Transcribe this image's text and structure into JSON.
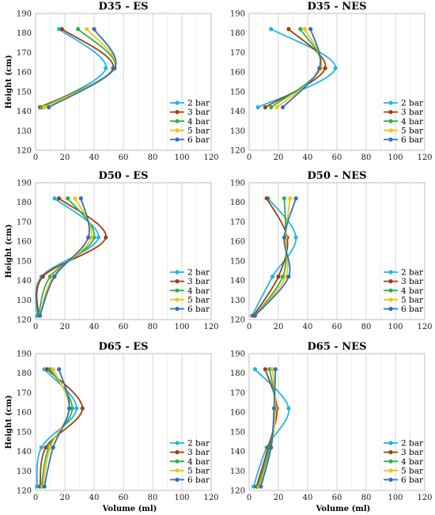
{
  "chart_data": [
    {
      "type": "line",
      "title": "D35 - ES",
      "xlabel": "",
      "ylabel": "Height (cm)",
      "xlim": [
        0,
        120
      ],
      "ylim": [
        120,
        190
      ],
      "xticks": [
        0,
        20,
        40,
        60,
        80,
        100,
        120
      ],
      "yticks": [
        120,
        130,
        140,
        150,
        160,
        170,
        180,
        190
      ],
      "legend": "bottom-right",
      "grid": "vertical",
      "series": [
        {
          "name": "2 bar",
          "color": "#1fb5e8",
          "points": [
            [
              16,
              182
            ],
            [
              48,
              162
            ],
            [
              5,
              142
            ]
          ]
        },
        {
          "name": "3 bar",
          "color": "#a23e0d",
          "points": [
            [
              18,
              182
            ],
            [
              53,
              162
            ],
            [
              3,
              142
            ]
          ]
        },
        {
          "name": "4 bar",
          "color": "#2bb24a",
          "points": [
            [
              29,
              182
            ],
            [
              54,
              162
            ],
            [
              4,
              142
            ]
          ]
        },
        {
          "name": "5 bar",
          "color": "#f4c316",
          "points": [
            [
              35,
              182
            ],
            [
              54,
              162
            ],
            [
              6,
              142
            ]
          ]
        },
        {
          "name": "6 bar",
          "color": "#2f6fc0",
          "points": [
            [
              40,
              182
            ],
            [
              54,
              162
            ],
            [
              9,
              142
            ]
          ]
        }
      ]
    },
    {
      "type": "line",
      "title": "D35 - NES",
      "xlabel": "",
      "ylabel": "",
      "xlim": [
        0,
        120
      ],
      "ylim": [
        120,
        190
      ],
      "xticks": [
        0,
        20,
        40,
        60,
        80,
        100,
        120
      ],
      "yticks": [
        120,
        130,
        140,
        150,
        160,
        170,
        180,
        190
      ],
      "legend": "bottom-right",
      "grid": "vertical",
      "series": [
        {
          "name": "2 bar",
          "color": "#1fb5e8",
          "points": [
            [
              15,
              182
            ],
            [
              59,
              162
            ],
            [
              6,
              142
            ]
          ]
        },
        {
          "name": "3 bar",
          "color": "#a23e0d",
          "points": [
            [
              27,
              182
            ],
            [
              52,
              162
            ],
            [
              11,
              142
            ]
          ]
        },
        {
          "name": "4 bar",
          "color": "#2bb24a",
          "points": [
            [
              35,
              182
            ],
            [
              49,
              162
            ],
            [
              15,
              142
            ]
          ]
        },
        {
          "name": "5 bar",
          "color": "#f4c316",
          "points": [
            [
              38,
              182
            ],
            [
              49,
              162
            ],
            [
              19,
              142
            ]
          ]
        },
        {
          "name": "6 bar",
          "color": "#2f6fc0",
          "points": [
            [
              42,
              182
            ],
            [
              48,
              162
            ],
            [
              23,
              142
            ]
          ]
        }
      ]
    },
    {
      "type": "line",
      "title": "D50 - ES",
      "xlabel": "",
      "ylabel": "Height (cm)",
      "xlim": [
        0,
        120
      ],
      "ylim": [
        120,
        190
      ],
      "xticks": [
        0,
        20,
        40,
        60,
        80,
        100,
        120
      ],
      "yticks": [
        120,
        130,
        140,
        150,
        160,
        170,
        180,
        190
      ],
      "legend": "bottom-right",
      "grid": "vertical",
      "series": [
        {
          "name": "2 bar",
          "color": "#1fb5e8",
          "points": [
            [
              13,
              182
            ],
            [
              43,
              162
            ],
            [
              4,
              142
            ],
            [
              1,
              122
            ]
          ]
        },
        {
          "name": "3 bar",
          "color": "#a23e0d",
          "points": [
            [
              16,
              182
            ],
            [
              48,
              162
            ],
            [
              5,
              142
            ],
            [
              2,
              122
            ]
          ]
        },
        {
          "name": "4 bar",
          "color": "#2bb24a",
          "points": [
            [
              22,
              182
            ],
            [
              40,
              162
            ],
            [
              10,
              142
            ],
            [
              2,
              122
            ]
          ]
        },
        {
          "name": "5 bar",
          "color": "#f4c316",
          "points": [
            [
              27,
              182
            ],
            [
              38,
              162
            ],
            [
              12,
              142
            ],
            [
              3,
              122
            ]
          ]
        },
        {
          "name": "6 bar",
          "color": "#2f6fc0",
          "points": [
            [
              31,
              182
            ],
            [
              36,
              162
            ],
            [
              13,
              142
            ],
            [
              3,
              122
            ]
          ]
        }
      ]
    },
    {
      "type": "line",
      "title": "D50 - NES",
      "xlabel": "",
      "ylabel": "",
      "xlim": [
        0,
        120
      ],
      "ylim": [
        120,
        190
      ],
      "xticks": [
        0,
        20,
        40,
        60,
        80,
        100,
        120
      ],
      "yticks": [
        120,
        130,
        140,
        150,
        160,
        170,
        180,
        190
      ],
      "legend": "bottom-right",
      "grid": "vertical",
      "series": [
        {
          "name": "2 bar",
          "color": "#1fb5e8",
          "points": [
            [
              13,
              182
            ],
            [
              32,
              162
            ],
            [
              16,
              142
            ],
            [
              2,
              122
            ]
          ]
        },
        {
          "name": "3 bar",
          "color": "#a23e0d",
          "points": [
            [
              12,
              182
            ],
            [
              26,
              162
            ],
            [
              20,
              142
            ],
            [
              3,
              122
            ]
          ]
        },
        {
          "name": "4 bar",
          "color": "#2bb24a",
          "points": [
            [
              24,
              182
            ],
            [
              25,
              162
            ],
            [
              23,
              142
            ],
            [
              4,
              122
            ]
          ]
        },
        {
          "name": "5 bar",
          "color": "#f4c316",
          "points": [
            [
              28,
              182
            ],
            [
              25,
              162
            ],
            [
              25,
              142
            ],
            [
              4,
              122
            ]
          ]
        },
        {
          "name": "6 bar",
          "color": "#2f6fc0",
          "points": [
            [
              32,
              182
            ],
            [
              24,
              162
            ],
            [
              27,
              142
            ],
            [
              4,
              122
            ]
          ]
        }
      ]
    },
    {
      "type": "line",
      "title": "D65 - ES",
      "xlabel": "Volume (ml)",
      "ylabel": "Height (cm)",
      "xlim": [
        0,
        120
      ],
      "ylim": [
        120,
        190
      ],
      "xticks": [
        0,
        20,
        40,
        60,
        80,
        100,
        120
      ],
      "yticks": [
        120,
        130,
        140,
        150,
        160,
        170,
        180,
        190
      ],
      "legend": "bottom-right",
      "grid": "vertical",
      "series": [
        {
          "name": "2 bar",
          "color": "#1fb5e8",
          "points": [
            [
              6,
              182
            ],
            [
              28,
              162
            ],
            [
              4,
              142
            ],
            [
              1,
              122
            ]
          ]
        },
        {
          "name": "3 bar",
          "color": "#a23e0d",
          "points": [
            [
              8,
              182
            ],
            [
              32,
              162
            ],
            [
              7,
              142
            ],
            [
              3,
              122
            ]
          ]
        },
        {
          "name": "4 bar",
          "color": "#2bb24a",
          "points": [
            [
              10,
              182
            ],
            [
              25,
              162
            ],
            [
              9,
              142
            ],
            [
              4,
              122
            ]
          ]
        },
        {
          "name": "5 bar",
          "color": "#f4c316",
          "points": [
            [
              12,
              182
            ],
            [
              23,
              162
            ],
            [
              10,
              142
            ],
            [
              5,
              122
            ]
          ]
        },
        {
          "name": "6 bar",
          "color": "#2f6fc0",
          "points": [
            [
              16,
              182
            ],
            [
              23,
              162
            ],
            [
              12,
              142
            ],
            [
              6,
              122
            ]
          ]
        }
      ]
    },
    {
      "type": "line",
      "title": "D65 - NES",
      "xlabel": "Volume (ml)",
      "ylabel": "",
      "xlim": [
        0,
        120
      ],
      "ylim": [
        120,
        190
      ],
      "xticks": [
        0,
        20,
        40,
        60,
        80,
        100,
        120
      ],
      "yticks": [
        120,
        130,
        140,
        150,
        160,
        170,
        180,
        190
      ],
      "legend": "bottom-right",
      "grid": "vertical",
      "series": [
        {
          "name": "2 bar",
          "color": "#1fb5e8",
          "points": [
            [
              4,
              182
            ],
            [
              27,
              162
            ],
            [
              12,
              142
            ],
            [
              3,
              122
            ]
          ]
        },
        {
          "name": "3 bar",
          "color": "#a23e0d",
          "points": [
            [
              11,
              182
            ],
            [
              19,
              162
            ],
            [
              13,
              142
            ],
            [
              5,
              122
            ]
          ]
        },
        {
          "name": "4 bar",
          "color": "#2bb24a",
          "points": [
            [
              14,
              182
            ],
            [
              18,
              162
            ],
            [
              14,
              142
            ],
            [
              6,
              122
            ]
          ]
        },
        {
          "name": "5 bar",
          "color": "#f4c316",
          "points": [
            [
              16,
              182
            ],
            [
              18,
              162
            ],
            [
              15,
              142
            ],
            [
              7,
              122
            ]
          ]
        },
        {
          "name": "6 bar",
          "color": "#2f6fc0",
          "points": [
            [
              18,
              182
            ],
            [
              17,
              162
            ],
            [
              15,
              142
            ],
            [
              8,
              122
            ]
          ]
        }
      ]
    }
  ]
}
